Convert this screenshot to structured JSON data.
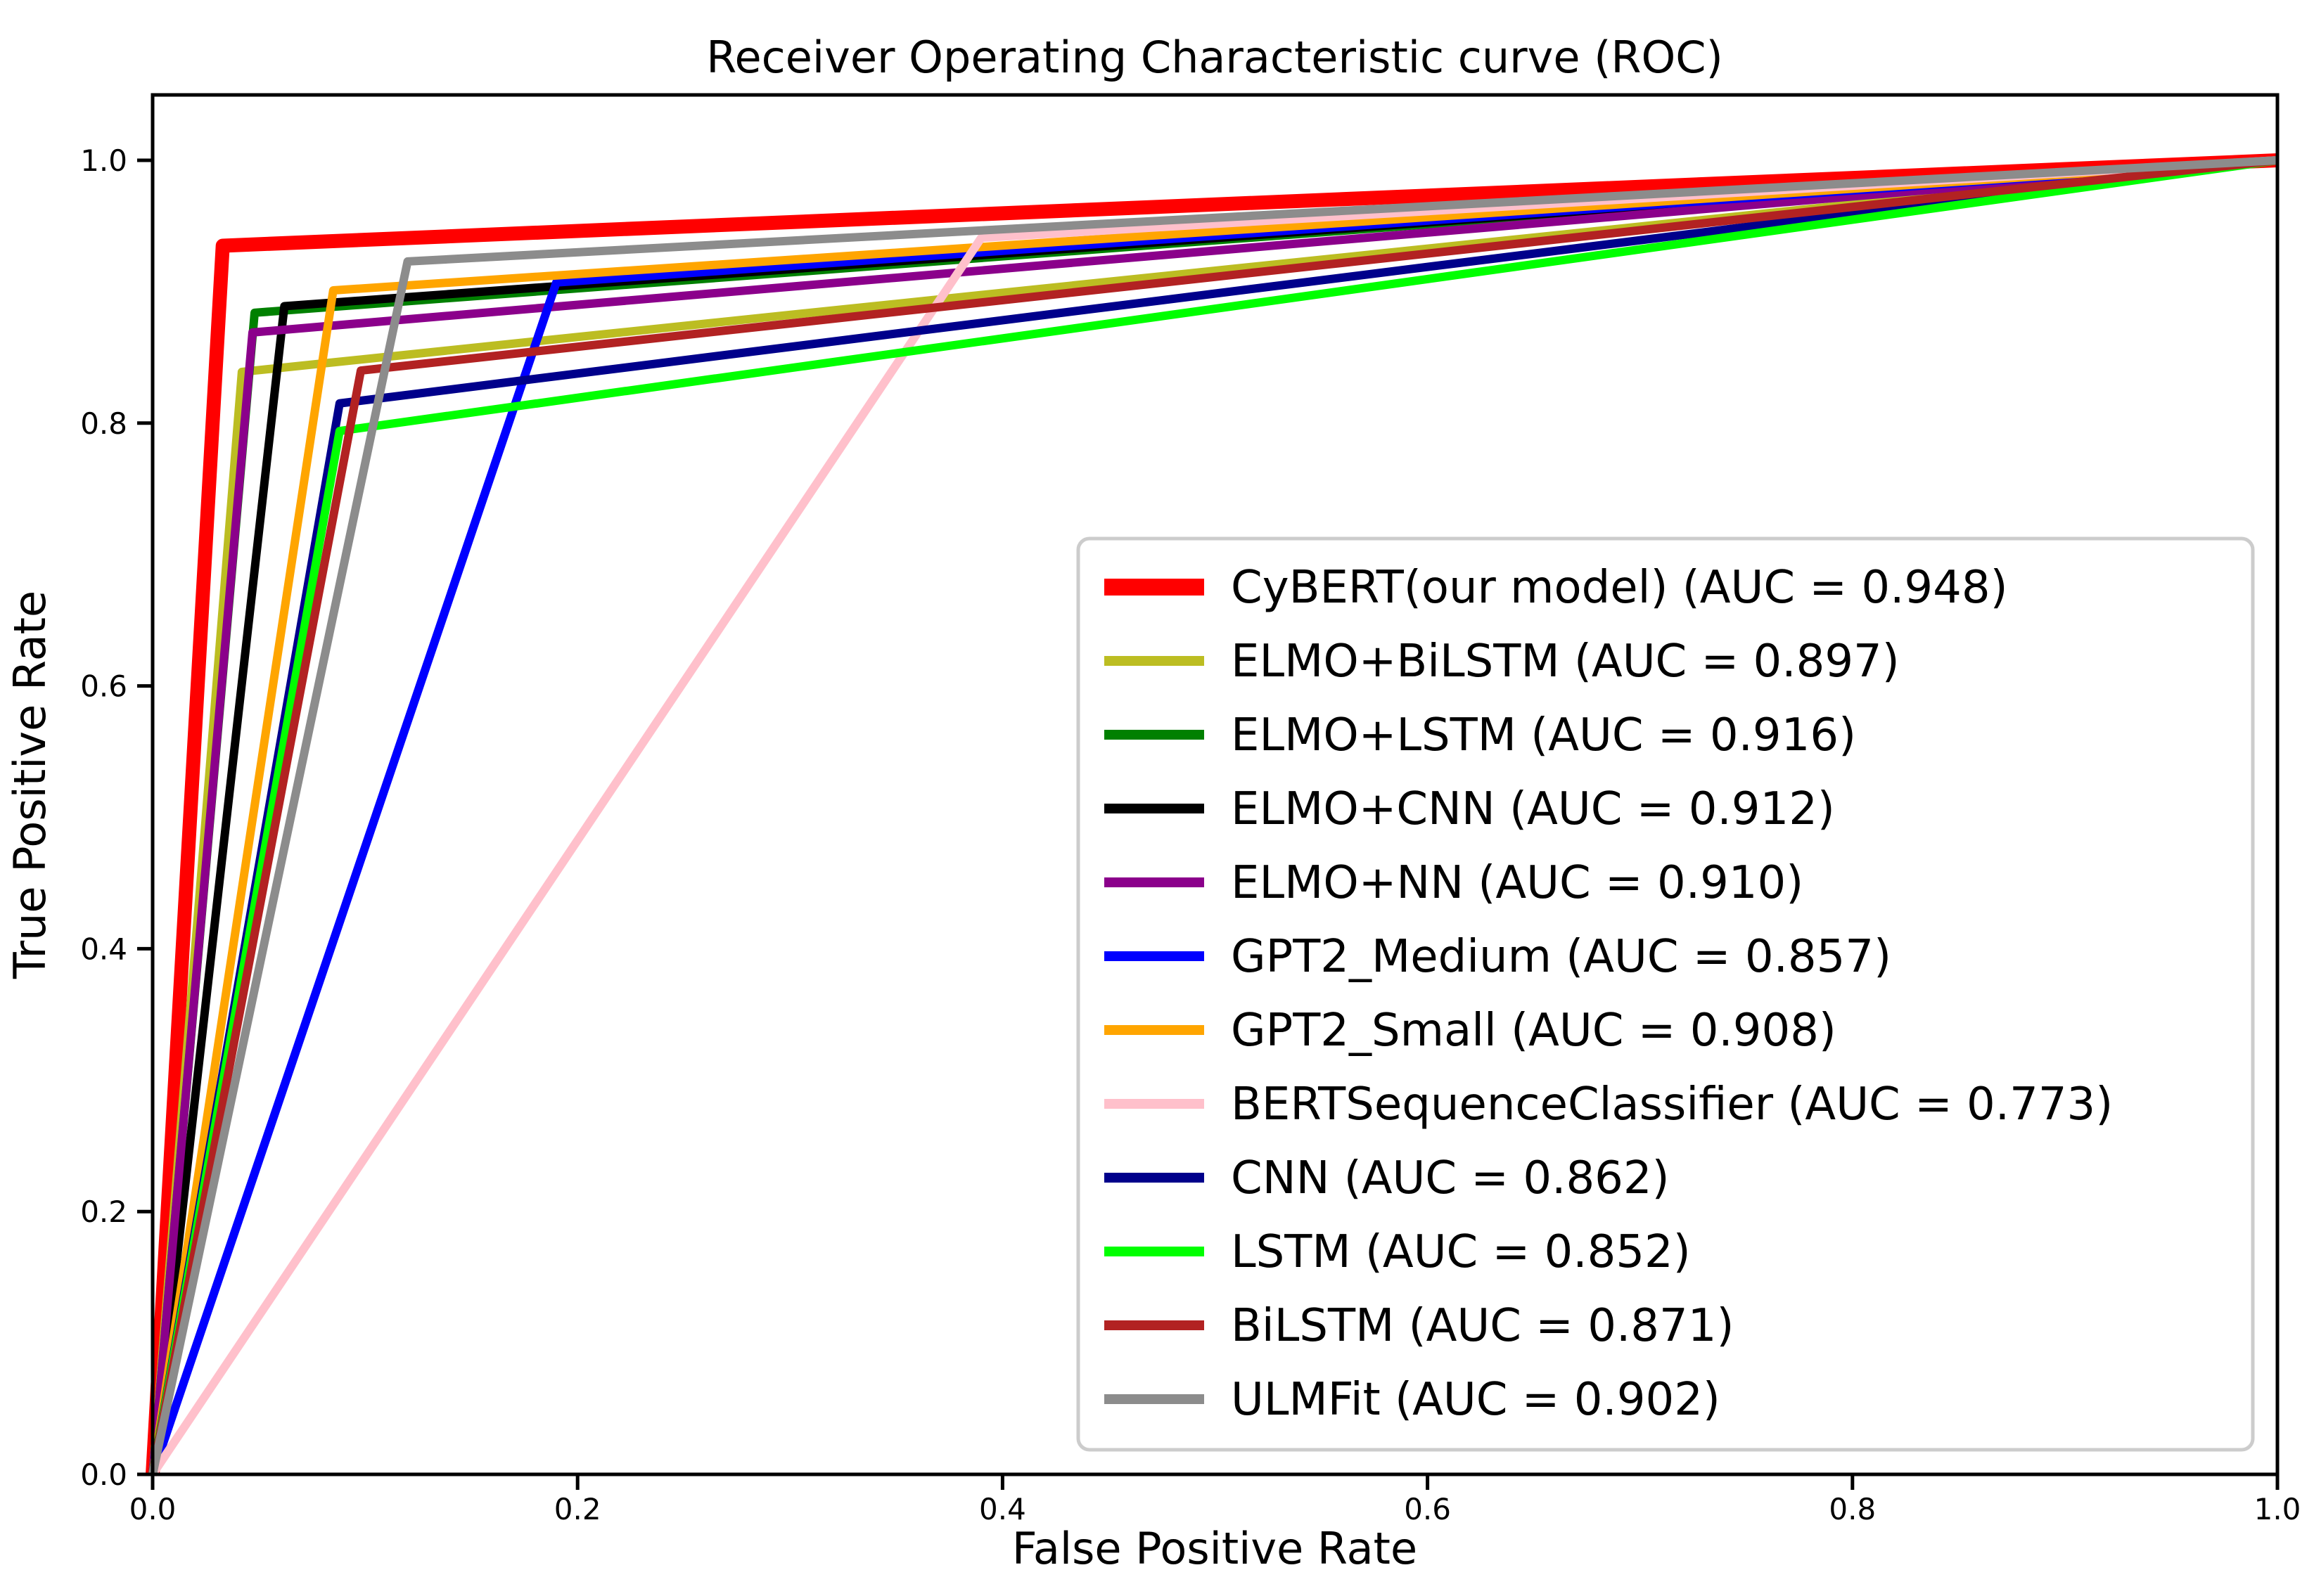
{
  "chart_data": {
    "type": "line",
    "title": "Receiver Operating Characteristic curve (ROC)",
    "xlabel": "False Positive Rate",
    "ylabel": "True Positive Rate",
    "xlim": [
      0.0,
      1.0
    ],
    "ylim": [
      0.0,
      1.05
    ],
    "grid": false,
    "legend_position": "inside center-right",
    "xticks": [
      {
        "v": 0.0,
        "label": "0.0"
      },
      {
        "v": 0.2,
        "label": "0.2"
      },
      {
        "v": 0.4,
        "label": "0.4"
      },
      {
        "v": 0.6,
        "label": "0.6"
      },
      {
        "v": 0.8,
        "label": "0.8"
      },
      {
        "v": 1.0,
        "label": "1.0"
      }
    ],
    "yticks": [
      {
        "v": 0.0,
        "label": "0.0"
      },
      {
        "v": 0.2,
        "label": "0.2"
      },
      {
        "v": 0.4,
        "label": "0.4"
      },
      {
        "v": 0.6,
        "label": "0.6"
      },
      {
        "v": 0.8,
        "label": "0.8"
      },
      {
        "v": 1.0,
        "label": "1.0"
      }
    ],
    "series": [
      {
        "name": "CyBERT(our model)",
        "auc": 0.948,
        "legend_label": "CyBERT(our model) (AUC = 0.948)",
        "color": "#ff0000",
        "linewidth": 20,
        "x": [
          0,
          0.033,
          1.0
        ],
        "y": [
          0,
          0.935,
          1.0
        ]
      },
      {
        "name": "ELMO+BiLSTM",
        "auc": 0.897,
        "legend_label": "ELMO+BiLSTM (AUC = 0.897)",
        "color": "#bcbd22",
        "linewidth": 12,
        "x": [
          0,
          0.042,
          1.0
        ],
        "y": [
          0,
          0.839,
          1.0
        ]
      },
      {
        "name": "ELMO+LSTM",
        "auc": 0.916,
        "legend_label": "ELMO+LSTM (AUC = 0.916)",
        "color": "#008000",
        "linewidth": 12,
        "x": [
          0,
          0.048,
          1.0
        ],
        "y": [
          0,
          0.884,
          1.0
        ]
      },
      {
        "name": "ELMO+CNN",
        "auc": 0.912,
        "legend_label": "ELMO+CNN (AUC = 0.912)",
        "color": "#000000",
        "linewidth": 12,
        "x": [
          0,
          0.062,
          1.0
        ],
        "y": [
          0,
          0.889,
          1.0
        ]
      },
      {
        "name": "ELMO+NN",
        "auc": 0.91,
        "legend_label": "ELMO+NN (AUC = 0.910)",
        "color": "#8b008b",
        "linewidth": 12,
        "x": [
          0,
          0.047,
          1.0
        ],
        "y": [
          0,
          0.869,
          1.0
        ]
      },
      {
        "name": "GPT2_Medium",
        "auc": 0.857,
        "legend_label": "GPT2_Medium (AUC = 0.857)",
        "color": "#0000ff",
        "linewidth": 12,
        "x": [
          0,
          0.19,
          1.0
        ],
        "y": [
          0,
          0.907,
          1.0
        ]
      },
      {
        "name": "GPT2_Small",
        "auc": 0.908,
        "legend_label": "GPT2_Small (AUC = 0.908)",
        "color": "#ffa500",
        "linewidth": 12,
        "x": [
          0,
          0.085,
          1.0
        ],
        "y": [
          0,
          0.901,
          1.0
        ]
      },
      {
        "name": "BERTSequenceClassifier",
        "auc": 0.773,
        "legend_label": "BERTSequenceClassifier (AUC = 0.773)",
        "color": "#ffc0cb",
        "linewidth": 12,
        "x": [
          0,
          0.39,
          1.0
        ],
        "y": [
          0,
          0.941,
          1.0
        ]
      },
      {
        "name": "CNN",
        "auc": 0.862,
        "legend_label": "CNN (AUC = 0.862)",
        "color": "#00008b",
        "linewidth": 12,
        "x": [
          0,
          0.088,
          1.0
        ],
        "y": [
          0,
          0.815,
          1.0
        ]
      },
      {
        "name": "LSTM",
        "auc": 0.852,
        "legend_label": "LSTM (AUC = 0.852)",
        "color": "#00ff00",
        "linewidth": 12,
        "x": [
          0,
          0.088,
          1.0
        ],
        "y": [
          0,
          0.794,
          1.0
        ]
      },
      {
        "name": "BiLSTM",
        "auc": 0.871,
        "legend_label": "BiLSTM (AUC = 0.871)",
        "color": "#b22222",
        "linewidth": 12,
        "x": [
          0,
          0.098,
          1.0
        ],
        "y": [
          0,
          0.84,
          1.0
        ]
      },
      {
        "name": "ULMFit",
        "auc": 0.902,
        "legend_label": "ULMFit (AUC = 0.902)",
        "color": "#8c8c8c",
        "linewidth": 12,
        "x": [
          0,
          0.12,
          1.0
        ],
        "y": [
          0,
          0.923,
          1.0
        ]
      }
    ],
    "colors": {
      "background": "#ffffff",
      "spine": "#000000",
      "legend_border": "#cccccc",
      "legend_background": "#ffffff",
      "highlight_series": "#ff0000"
    }
  }
}
